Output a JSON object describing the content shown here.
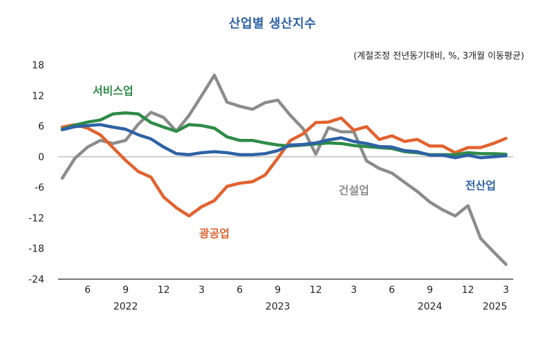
{
  "chart_data": {
    "type": "line",
    "title": "산업별 생산지수",
    "subtitle": "(계절조정 전년동기대비, %, 3개월 이동평균)",
    "xlabel": "",
    "ylabel": "",
    "ylim": [
      -24,
      18
    ],
    "yticks": [
      18,
      12,
      6,
      0,
      -6,
      -12,
      -18,
      -24
    ],
    "grid": false,
    "start_month": "2022-04",
    "xtick_labels": [
      {
        "index": 2,
        "label": "6"
      },
      {
        "index": 5,
        "label": "9"
      },
      {
        "index": 8,
        "label": "12"
      },
      {
        "index": 11,
        "label": "3"
      },
      {
        "index": 14,
        "label": "6"
      },
      {
        "index": 17,
        "label": "9"
      },
      {
        "index": 20,
        "label": "12"
      },
      {
        "index": 23,
        "label": "3"
      },
      {
        "index": 26,
        "label": "6"
      },
      {
        "index": 29,
        "label": "9"
      },
      {
        "index": 32,
        "label": "12"
      },
      {
        "index": 35,
        "label": "3"
      }
    ],
    "year_labels": [
      {
        "index": 5,
        "label": "2022"
      },
      {
        "index": 17,
        "label": "2023"
      },
      {
        "index": 29,
        "label": "2024"
      },
      {
        "index": 35,
        "label": "2025"
      }
    ],
    "series": [
      {
        "name": "건설업",
        "color": "#8c8c8c",
        "label_pos": {
          "index": 23,
          "value": -6.5
        },
        "values": [
          -4.2,
          -0.3,
          1.9,
          3.2,
          2.6,
          3.2,
          6.4,
          8.7,
          7.7,
          5.0,
          8.1,
          12.0,
          16.0,
          10.7,
          9.9,
          9.3,
          10.6,
          11.1,
          8.1,
          5.5,
          0.5,
          5.7,
          4.9,
          4.9,
          -0.8,
          -2.3,
          -3.2,
          -5.0,
          -6.8,
          -8.9,
          -10.4,
          -11.6,
          -9.6,
          -16.0,
          -18.6,
          -21.1
        ]
      },
      {
        "name": "광공업",
        "color": "#e2622f",
        "label_pos": {
          "index": 12,
          "value": -15.0
        },
        "values": [
          5.8,
          6.3,
          5.6,
          4.3,
          1.8,
          -0.7,
          -2.9,
          -4.0,
          -7.9,
          -10.0,
          -11.6,
          -9.8,
          -8.6,
          -5.8,
          -5.2,
          -4.9,
          -3.6,
          -0.3,
          3.2,
          4.5,
          6.7,
          6.8,
          7.6,
          5.2,
          5.9,
          3.4,
          4.1,
          3.0,
          3.4,
          2.1,
          2.1,
          0.8,
          1.8,
          1.8,
          2.6,
          3.6
        ]
      },
      {
        "name": "서비스업",
        "color": "#2e8b47",
        "label_pos": {
          "index": 4,
          "value": 13.0
        },
        "values": [
          5.4,
          6.2,
          6.8,
          7.2,
          8.4,
          8.6,
          8.4,
          6.7,
          5.8,
          5.0,
          6.3,
          6.1,
          5.6,
          3.9,
          3.2,
          3.2,
          2.7,
          2.3,
          2.1,
          2.3,
          2.5,
          2.7,
          2.6,
          2.2,
          2.0,
          1.8,
          1.6,
          1.0,
          0.8,
          0.4,
          0.4,
          0.4,
          0.8,
          0.6,
          0.6,
          0.5
        ]
      },
      {
        "name": "전산업",
        "color": "#2e62a6",
        "label_pos": {
          "index": 33,
          "value": -5.6
        },
        "values": [
          5.3,
          5.9,
          6.1,
          6.3,
          5.8,
          5.4,
          4.3,
          3.5,
          1.9,
          0.6,
          0.4,
          0.8,
          1.0,
          0.8,
          0.4,
          0.4,
          0.6,
          1.2,
          2.3,
          2.4,
          2.7,
          3.3,
          3.7,
          3.0,
          2.6,
          2.0,
          1.9,
          1.2,
          1.0,
          0.3,
          0.3,
          -0.2,
          0.3,
          -0.2,
          0.0,
          0.2
        ]
      }
    ]
  }
}
